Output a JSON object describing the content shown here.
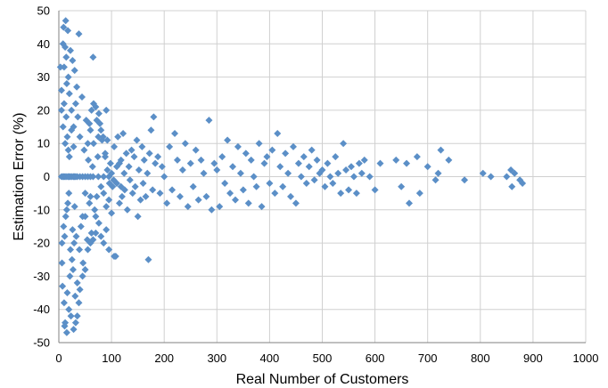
{
  "chart_data": {
    "type": "scatter",
    "title": "",
    "xlabel": "Real Number of Customers",
    "ylabel": "Estimation Error (%)",
    "xlim": [
      0,
      1000
    ],
    "ylim": [
      -50,
      50
    ],
    "x_ticks": [
      0,
      100,
      200,
      300,
      400,
      500,
      600,
      700,
      800,
      900,
      1000
    ],
    "y_ticks": [
      -50,
      -40,
      -30,
      -20,
      -10,
      0,
      10,
      20,
      30,
      40,
      50
    ],
    "grid": true,
    "legend": "none",
    "marker": "diamond",
    "color": "#5b8fc7",
    "series": [
      {
        "points": [
          [
            3,
            33
          ],
          [
            5,
            26
          ],
          [
            6,
            -26
          ],
          [
            7,
            -33
          ],
          [
            8,
            40
          ],
          [
            9,
            45
          ],
          [
            10,
            33
          ],
          [
            10,
            -38
          ],
          [
            11,
            -45
          ],
          [
            12,
            39
          ],
          [
            12,
            -44
          ],
          [
            13,
            47
          ],
          [
            14,
            36
          ],
          [
            15,
            -47
          ],
          [
            15,
            28
          ],
          [
            16,
            -35
          ],
          [
            17,
            44
          ],
          [
            18,
            30
          ],
          [
            19,
            -40
          ],
          [
            20,
            25
          ],
          [
            21,
            -30
          ],
          [
            22,
            38
          ],
          [
            23,
            -42
          ],
          [
            24,
            20
          ],
          [
            25,
            -25
          ],
          [
            26,
            35
          ],
          [
            27,
            -28
          ],
          [
            28,
            15
          ],
          [
            29,
            -20
          ],
          [
            30,
            32
          ],
          [
            31,
            -36
          ],
          [
            32,
            22
          ],
          [
            33,
            -18
          ],
          [
            34,
            27
          ],
          [
            35,
            -32
          ],
          [
            36,
            18
          ],
          [
            38,
            43
          ],
          [
            39,
            -22
          ],
          [
            40,
            12
          ],
          [
            42,
            -15
          ],
          [
            44,
            24
          ],
          [
            46,
            -26
          ],
          [
            48,
            8
          ],
          [
            50,
            -12
          ],
          [
            52,
            17
          ],
          [
            54,
            -19
          ],
          [
            56,
            5
          ],
          [
            58,
            -8
          ],
          [
            60,
            14
          ],
          [
            62,
            -17
          ],
          [
            65,
            36
          ],
          [
            66,
            10
          ],
          [
            68,
            -10
          ],
          [
            70,
            21
          ],
          [
            72,
            -6
          ],
          [
            74,
            6
          ],
          [
            76,
            -14
          ],
          [
            78,
            16
          ],
          [
            80,
            -3
          ],
          [
            82,
            11
          ],
          [
            5,
            20
          ],
          [
            6,
            -20
          ],
          [
            8,
            15
          ],
          [
            9,
            -15
          ],
          [
            10,
            22
          ],
          [
            11,
            -18
          ],
          [
            12,
            10
          ],
          [
            13,
            -12
          ],
          [
            14,
            18
          ],
          [
            15,
            -10
          ],
          [
            16,
            12
          ],
          [
            17,
            -8
          ],
          [
            18,
            8
          ],
          [
            19,
            -5
          ],
          [
            20,
            6
          ],
          [
            22,
            -22
          ],
          [
            24,
            14
          ],
          [
            26,
            -16
          ],
          [
            28,
            9
          ],
          [
            30,
            -9
          ],
          [
            85,
            -5
          ],
          [
            88,
            7
          ],
          [
            90,
            -9
          ],
          [
            92,
            2
          ],
          [
            95,
            -7
          ],
          [
            98,
            4
          ],
          [
            100,
            -11
          ],
          [
            102,
            -3
          ],
          [
            105,
            9
          ],
          [
            108,
            -24
          ],
          [
            110,
            -2
          ],
          [
            112,
            12
          ],
          [
            115,
            -8
          ],
          [
            118,
            5
          ],
          [
            120,
            -6
          ],
          [
            122,
            13
          ],
          [
            125,
            -4
          ],
          [
            128,
            7
          ],
          [
            130,
            -10
          ],
          [
            133,
            3
          ],
          [
            135,
            -1
          ],
          [
            138,
            8
          ],
          [
            140,
            -5
          ],
          [
            143,
            6
          ],
          [
            145,
            -3
          ],
          [
            148,
            11
          ],
          [
            150,
            -12
          ],
          [
            152,
            2
          ],
          [
            155,
            -7
          ],
          [
            158,
            9
          ],
          [
            160,
            -2
          ],
          [
            162,
            5
          ],
          [
            165,
            -6
          ],
          [
            168,
            1
          ],
          [
            170,
            -25
          ],
          [
            172,
            7
          ],
          [
            175,
            14
          ],
          [
            178,
            -4
          ],
          [
            180,
            18
          ],
          [
            183,
            4
          ],
          [
            188,
            6
          ],
          [
            192,
            -5
          ],
          [
            196,
            3
          ],
          [
            200,
            0
          ],
          [
            205,
            -8
          ],
          [
            210,
            9
          ],
          [
            215,
            -4
          ],
          [
            220,
            13
          ],
          [
            225,
            5
          ],
          [
            230,
            -6
          ],
          [
            235,
            2
          ],
          [
            240,
            10
          ],
          [
            245,
            -9
          ],
          [
            250,
            4
          ],
          [
            255,
            -3
          ],
          [
            260,
            8
          ],
          [
            265,
            -7
          ],
          [
            270,
            5
          ],
          [
            275,
            1
          ],
          [
            280,
            -6
          ],
          [
            285,
            17
          ],
          [
            290,
            -10
          ],
          [
            295,
            4
          ],
          [
            300,
            2
          ],
          [
            305,
            -9
          ],
          [
            310,
            6
          ],
          [
            315,
            -2
          ],
          [
            320,
            11
          ],
          [
            325,
            -5
          ],
          [
            330,
            3
          ],
          [
            335,
            -7
          ],
          [
            340,
            9
          ],
          [
            345,
            1
          ],
          [
            350,
            -4
          ],
          [
            355,
            7
          ],
          [
            360,
            -8
          ],
          [
            365,
            5
          ],
          [
            370,
            0
          ],
          [
            375,
            -3
          ],
          [
            380,
            10
          ],
          [
            385,
            -9
          ],
          [
            390,
            4
          ],
          [
            395,
            6
          ],
          [
            400,
            -2
          ],
          [
            405,
            8
          ],
          [
            410,
            -5
          ],
          [
            415,
            13
          ],
          [
            420,
            3
          ],
          [
            425,
            -3
          ],
          [
            430,
            7
          ],
          [
            435,
            1
          ],
          [
            440,
            -6
          ],
          [
            445,
            9
          ],
          [
            450,
            -8
          ],
          [
            455,
            4
          ],
          [
            460,
            0
          ],
          [
            465,
            6
          ],
          [
            470,
            -2
          ],
          [
            475,
            3
          ],
          [
            480,
            8
          ],
          [
            485,
            -1
          ],
          [
            490,
            5
          ],
          [
            495,
            1
          ],
          [
            500,
            2
          ],
          [
            505,
            -3
          ],
          [
            510,
            4
          ],
          [
            515,
            0
          ],
          [
            520,
            -2
          ],
          [
            525,
            6
          ],
          [
            530,
            1
          ],
          [
            535,
            -5
          ],
          [
            540,
            10
          ],
          [
            545,
            2
          ],
          [
            550,
            -4
          ],
          [
            555,
            3
          ],
          [
            560,
            0
          ],
          [
            565,
            -5
          ],
          [
            570,
            4
          ],
          [
            575,
            1
          ],
          [
            580,
            5
          ],
          [
            590,
            0
          ],
          [
            600,
            -4
          ],
          [
            610,
            4
          ],
          [
            640,
            5
          ],
          [
            650,
            -3
          ],
          [
            660,
            4
          ],
          [
            665,
            -8
          ],
          [
            680,
            6
          ],
          [
            685,
            -5
          ],
          [
            700,
            3
          ],
          [
            715,
            -1
          ],
          [
            720,
            1
          ],
          [
            725,
            8
          ],
          [
            740,
            5
          ],
          [
            770,
            -1
          ],
          [
            805,
            1
          ],
          [
            820,
            0
          ],
          [
            850,
            0
          ],
          [
            858,
            2
          ],
          [
            860,
            -3
          ],
          [
            865,
            1
          ],
          [
            875,
            -1
          ],
          [
            880,
            -2
          ],
          [
            60,
            -6
          ],
          [
            64,
            3
          ],
          [
            70,
            -12
          ],
          [
            75,
            12
          ],
          [
            80,
            -18
          ],
          [
            85,
            -20
          ],
          [
            90,
            -16
          ],
          [
            95,
            -22
          ],
          [
            105,
            -24
          ],
          [
            45,
            -30
          ],
          [
            40,
            -34
          ],
          [
            38,
            -38
          ],
          [
            35,
            -42
          ],
          [
            32,
            -44
          ],
          [
            28,
            -46
          ],
          [
            50,
            -28
          ],
          [
            55,
            -22
          ],
          [
            60,
            -20
          ],
          [
            65,
            -19
          ],
          [
            70,
            -17
          ],
          [
            45,
            -12
          ],
          [
            50,
            -5
          ],
          [
            55,
            10
          ],
          [
            58,
            16
          ],
          [
            62,
            20
          ],
          [
            66,
            22
          ],
          [
            72,
            17
          ],
          [
            76,
            19
          ],
          [
            80,
            14
          ],
          [
            84,
            12
          ],
          [
            90,
            20
          ],
          [
            88,
            6
          ],
          [
            92,
            11
          ],
          [
            96,
            -2
          ],
          [
            100,
            1
          ],
          [
            104,
            -1
          ],
          [
            110,
            3
          ],
          [
            115,
            4
          ],
          [
            118,
            -3
          ],
          [
            124,
            1
          ],
          [
            35,
            0
          ],
          [
            40,
            0
          ],
          [
            45,
            0
          ],
          [
            50,
            0
          ],
          [
            55,
            0
          ],
          [
            60,
            0
          ],
          [
            65,
            0
          ],
          [
            75,
            0
          ],
          [
            85,
            0
          ],
          [
            95,
            0
          ],
          [
            5,
            0
          ],
          [
            8,
            0
          ],
          [
            10,
            0
          ],
          [
            12,
            0
          ],
          [
            15,
            0
          ],
          [
            18,
            0
          ],
          [
            20,
            0
          ],
          [
            22,
            0
          ],
          [
            25,
            0
          ],
          [
            28,
            0
          ],
          [
            30,
            0
          ],
          [
            32,
            0
          ]
        ]
      }
    ]
  }
}
